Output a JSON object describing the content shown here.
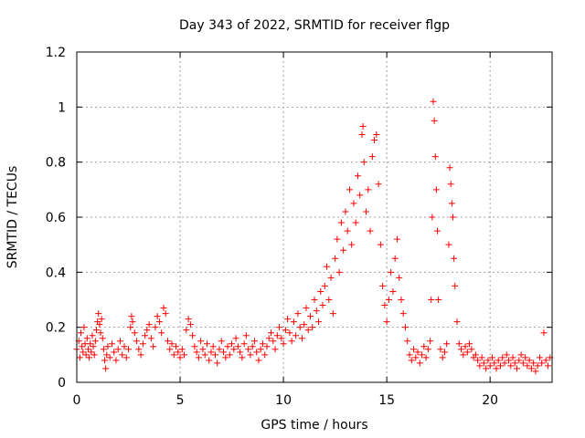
{
  "chart_data": {
    "type": "scatter",
    "title": "Day 343 of 2022, SRMTID for receiver flgp",
    "xlabel": "GPS time / hours",
    "ylabel": "SRMTID / TECUs",
    "xlim": [
      0,
      23
    ],
    "ylim": [
      0,
      1.2
    ],
    "x_ticks": [
      0,
      5,
      10,
      15,
      20
    ],
    "x_tick_labels": [
      "0",
      "5",
      "10",
      "15",
      "20"
    ],
    "y_ticks": [
      0,
      0.2,
      0.4,
      0.6,
      0.8,
      1.0,
      1.2
    ],
    "y_tick_labels": [
      "0",
      "0.2",
      "0.4",
      "0.6",
      "0.8",
      "1",
      "1.2"
    ],
    "grid": true,
    "marker": "+",
    "colors": {
      "series": "#ff0000",
      "grid": "#a0a0a0",
      "axis": "#000000"
    },
    "series": [
      {
        "name": "SRMTID",
        "points": [
          [
            0.0,
            0.12
          ],
          [
            0.1,
            0.15
          ],
          [
            0.15,
            0.09
          ],
          [
            0.2,
            0.18
          ],
          [
            0.25,
            0.13
          ],
          [
            0.3,
            0.11
          ],
          [
            0.35,
            0.2
          ],
          [
            0.4,
            0.14
          ],
          [
            0.45,
            0.1
          ],
          [
            0.5,
            0.16
          ],
          [
            0.55,
            0.12
          ],
          [
            0.6,
            0.09
          ],
          [
            0.65,
            0.14
          ],
          [
            0.7,
            0.11
          ],
          [
            0.75,
            0.17
          ],
          [
            0.8,
            0.13
          ],
          [
            0.85,
            0.1
          ],
          [
            0.9,
            0.15
          ],
          [
            0.95,
            0.19
          ],
          [
            1.0,
            0.22
          ],
          [
            1.05,
            0.25
          ],
          [
            1.1,
            0.21
          ],
          [
            1.15,
            0.18
          ],
          [
            1.2,
            0.23
          ],
          [
            1.25,
            0.16
          ],
          [
            1.3,
            0.12
          ],
          [
            1.35,
            0.08
          ],
          [
            1.4,
            0.05
          ],
          [
            1.45,
            0.1
          ],
          [
            1.5,
            0.13
          ],
          [
            1.6,
            0.09
          ],
          [
            1.7,
            0.14
          ],
          [
            1.8,
            0.11
          ],
          [
            1.9,
            0.08
          ],
          [
            2.0,
            0.12
          ],
          [
            2.1,
            0.15
          ],
          [
            2.2,
            0.1
          ],
          [
            2.3,
            0.13
          ],
          [
            2.4,
            0.09
          ],
          [
            2.5,
            0.12
          ],
          [
            2.6,
            0.2
          ],
          [
            2.65,
            0.24
          ],
          [
            2.7,
            0.22
          ],
          [
            2.8,
            0.18
          ],
          [
            2.9,
            0.15
          ],
          [
            3.0,
            0.12
          ],
          [
            3.1,
            0.1
          ],
          [
            3.2,
            0.14
          ],
          [
            3.3,
            0.17
          ],
          [
            3.4,
            0.19
          ],
          [
            3.5,
            0.21
          ],
          [
            3.6,
            0.16
          ],
          [
            3.7,
            0.13
          ],
          [
            3.8,
            0.2
          ],
          [
            3.9,
            0.24
          ],
          [
            4.0,
            0.22
          ],
          [
            4.1,
            0.18
          ],
          [
            4.2,
            0.27
          ],
          [
            4.3,
            0.25
          ],
          [
            4.4,
            0.15
          ],
          [
            4.5,
            0.12
          ],
          [
            4.6,
            0.14
          ],
          [
            4.7,
            0.1
          ],
          [
            4.8,
            0.13
          ],
          [
            4.9,
            0.11
          ],
          [
            5.0,
            0.09
          ],
          [
            5.1,
            0.12
          ],
          [
            5.2,
            0.1
          ],
          [
            5.3,
            0.19
          ],
          [
            5.4,
            0.23
          ],
          [
            5.5,
            0.21
          ],
          [
            5.6,
            0.17
          ],
          [
            5.7,
            0.13
          ],
          [
            5.8,
            0.11
          ],
          [
            5.9,
            0.09
          ],
          [
            6.0,
            0.15
          ],
          [
            6.1,
            0.12
          ],
          [
            6.2,
            0.1
          ],
          [
            6.3,
            0.14
          ],
          [
            6.4,
            0.08
          ],
          [
            6.5,
            0.11
          ],
          [
            6.6,
            0.13
          ],
          [
            6.7,
            0.1
          ],
          [
            6.8,
            0.07
          ],
          [
            6.9,
            0.12
          ],
          [
            7.0,
            0.15
          ],
          [
            7.1,
            0.11
          ],
          [
            7.2,
            0.09
          ],
          [
            7.3,
            0.13
          ],
          [
            7.4,
            0.1
          ],
          [
            7.5,
            0.14
          ],
          [
            7.6,
            0.12
          ],
          [
            7.7,
            0.16
          ],
          [
            7.8,
            0.13
          ],
          [
            7.9,
            0.11
          ],
          [
            8.0,
            0.09
          ],
          [
            8.1,
            0.14
          ],
          [
            8.2,
            0.17
          ],
          [
            8.3,
            0.12
          ],
          [
            8.4,
            0.1
          ],
          [
            8.5,
            0.13
          ],
          [
            8.6,
            0.15
          ],
          [
            8.7,
            0.11
          ],
          [
            8.8,
            0.08
          ],
          [
            8.9,
            0.12
          ],
          [
            9.0,
            0.14
          ],
          [
            9.1,
            0.1
          ],
          [
            9.2,
            0.13
          ],
          [
            9.3,
            0.16
          ],
          [
            9.4,
            0.18
          ],
          [
            9.5,
            0.15
          ],
          [
            9.6,
            0.12
          ],
          [
            9.7,
            0.17
          ],
          [
            9.8,
            0.2
          ],
          [
            9.9,
            0.16
          ],
          [
            10.0,
            0.14
          ],
          [
            10.1,
            0.19
          ],
          [
            10.2,
            0.23
          ],
          [
            10.3,
            0.18
          ],
          [
            10.4,
            0.15
          ],
          [
            10.5,
            0.22
          ],
          [
            10.6,
            0.17
          ],
          [
            10.7,
            0.25
          ],
          [
            10.8,
            0.2
          ],
          [
            10.9,
            0.16
          ],
          [
            11.0,
            0.21
          ],
          [
            11.1,
            0.27
          ],
          [
            11.2,
            0.19
          ],
          [
            11.3,
            0.24
          ],
          [
            11.4,
            0.2
          ],
          [
            11.5,
            0.3
          ],
          [
            11.6,
            0.26
          ],
          [
            11.7,
            0.22
          ],
          [
            11.8,
            0.33
          ],
          [
            11.9,
            0.28
          ],
          [
            12.0,
            0.35
          ],
          [
            12.1,
            0.42
          ],
          [
            12.2,
            0.3
          ],
          [
            12.3,
            0.38
          ],
          [
            12.4,
            0.25
          ],
          [
            12.5,
            0.45
          ],
          [
            12.6,
            0.52
          ],
          [
            12.7,
            0.4
          ],
          [
            12.8,
            0.58
          ],
          [
            12.9,
            0.48
          ],
          [
            13.0,
            0.62
          ],
          [
            13.1,
            0.55
          ],
          [
            13.2,
            0.7
          ],
          [
            13.3,
            0.5
          ],
          [
            13.4,
            0.65
          ],
          [
            13.5,
            0.58
          ],
          [
            13.6,
            0.75
          ],
          [
            13.7,
            0.68
          ],
          [
            13.8,
            0.9
          ],
          [
            13.85,
            0.93
          ],
          [
            13.9,
            0.8
          ],
          [
            14.0,
            0.62
          ],
          [
            14.1,
            0.7
          ],
          [
            14.2,
            0.55
          ],
          [
            14.3,
            0.82
          ],
          [
            14.4,
            0.88
          ],
          [
            14.5,
            0.9
          ],
          [
            14.6,
            0.72
          ],
          [
            14.7,
            0.5
          ],
          [
            14.8,
            0.35
          ],
          [
            14.9,
            0.28
          ],
          [
            15.0,
            0.22
          ],
          [
            15.1,
            0.3
          ],
          [
            15.2,
            0.4
          ],
          [
            15.3,
            0.33
          ],
          [
            15.4,
            0.45
          ],
          [
            15.5,
            0.52
          ],
          [
            15.6,
            0.38
          ],
          [
            15.7,
            0.3
          ],
          [
            15.8,
            0.25
          ],
          [
            15.9,
            0.2
          ],
          [
            16.0,
            0.15
          ],
          [
            16.1,
            0.1
          ],
          [
            16.2,
            0.08
          ],
          [
            16.3,
            0.12
          ],
          [
            16.4,
            0.09
          ],
          [
            16.5,
            0.11
          ],
          [
            16.6,
            0.07
          ],
          [
            16.7,
            0.1
          ],
          [
            16.8,
            0.13
          ],
          [
            16.9,
            0.09
          ],
          [
            17.0,
            0.12
          ],
          [
            17.1,
            0.15
          ],
          [
            17.15,
            0.3
          ],
          [
            17.2,
            0.6
          ],
          [
            17.25,
            1.02
          ],
          [
            17.3,
            0.95
          ],
          [
            17.35,
            0.82
          ],
          [
            17.4,
            0.7
          ],
          [
            17.45,
            0.55
          ],
          [
            17.5,
            0.3
          ],
          [
            17.6,
            0.12
          ],
          [
            17.7,
            0.09
          ],
          [
            17.8,
            0.11
          ],
          [
            17.9,
            0.14
          ],
          [
            18.0,
            0.5
          ],
          [
            18.05,
            0.78
          ],
          [
            18.1,
            0.72
          ],
          [
            18.15,
            0.65
          ],
          [
            18.2,
            0.6
          ],
          [
            18.25,
            0.45
          ],
          [
            18.3,
            0.35
          ],
          [
            18.4,
            0.22
          ],
          [
            18.5,
            0.14
          ],
          [
            18.6,
            0.12
          ],
          [
            18.7,
            0.1
          ],
          [
            18.8,
            0.13
          ],
          [
            18.9,
            0.11
          ],
          [
            19.0,
            0.14
          ],
          [
            19.1,
            0.12
          ],
          [
            19.2,
            0.09
          ],
          [
            19.3,
            0.1
          ],
          [
            19.4,
            0.08
          ],
          [
            19.5,
            0.06
          ],
          [
            19.6,
            0.09
          ],
          [
            19.7,
            0.07
          ],
          [
            19.8,
            0.05
          ],
          [
            19.9,
            0.08
          ],
          [
            20.0,
            0.06
          ],
          [
            20.1,
            0.09
          ],
          [
            20.2,
            0.07
          ],
          [
            20.3,
            0.05
          ],
          [
            20.4,
            0.08
          ],
          [
            20.5,
            0.06
          ],
          [
            20.6,
            0.09
          ],
          [
            20.7,
            0.07
          ],
          [
            20.8,
            0.1
          ],
          [
            20.9,
            0.08
          ],
          [
            21.0,
            0.06
          ],
          [
            21.1,
            0.09
          ],
          [
            21.2,
            0.07
          ],
          [
            21.3,
            0.05
          ],
          [
            21.4,
            0.08
          ],
          [
            21.5,
            0.1
          ],
          [
            21.6,
            0.07
          ],
          [
            21.7,
            0.09
          ],
          [
            21.8,
            0.06
          ],
          [
            21.9,
            0.08
          ],
          [
            22.0,
            0.05
          ],
          [
            22.1,
            0.07
          ],
          [
            22.2,
            0.04
          ],
          [
            22.3,
            0.06
          ],
          [
            22.4,
            0.09
          ],
          [
            22.5,
            0.07
          ],
          [
            22.6,
            0.18
          ],
          [
            22.7,
            0.08
          ],
          [
            22.8,
            0.06
          ],
          [
            22.9,
            0.09
          ]
        ]
      }
    ]
  }
}
